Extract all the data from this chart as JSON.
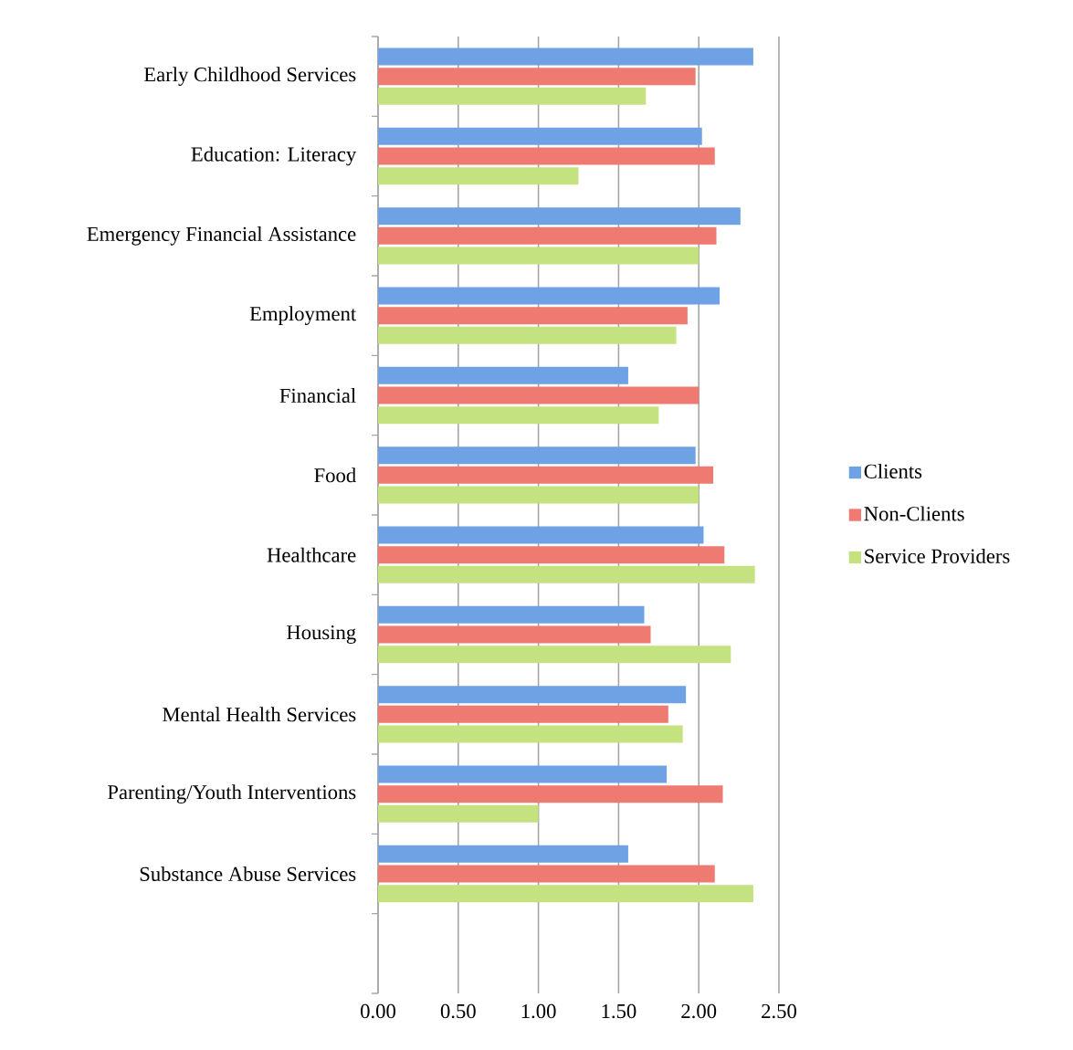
{
  "chart_data": {
    "type": "bar",
    "orientation": "horizontal",
    "categories": [
      "Early Childhood Services",
      "Education: Literacy",
      "Emergency Financial Assistance",
      "Employment",
      "Financial",
      "Food",
      "Healthcare",
      "Housing",
      "Mental Health Services",
      "Parenting/Youth Interventions",
      "Substance Abuse Services",
      null
    ],
    "series": [
      {
        "name": "Clients",
        "color": "#6ea2e4",
        "values": [
          2.34,
          2.02,
          2.26,
          2.13,
          1.56,
          1.98,
          2.03,
          1.66,
          1.92,
          1.8,
          1.56,
          null
        ]
      },
      {
        "name": "Non-Clients",
        "color": "#ee7a72",
        "values": [
          1.98,
          2.1,
          2.11,
          1.93,
          2.0,
          2.09,
          2.16,
          1.7,
          1.81,
          2.15,
          2.1,
          null
        ]
      },
      {
        "name": "Service Providers",
        "color": "#c5e280",
        "values": [
          1.67,
          1.25,
          2.0,
          1.86,
          1.75,
          2.0,
          2.35,
          2.2,
          1.9,
          1.0,
          2.34,
          null
        ]
      }
    ],
    "xlim": [
      0,
      2.5
    ],
    "xticks": [
      {
        "value": 0,
        "label": "0.00"
      },
      {
        "value": 0.5,
        "label": "0.50"
      },
      {
        "value": 1,
        "label": "1.00"
      },
      {
        "value": 1.5,
        "label": "1.50"
      },
      {
        "value": 2,
        "label": "2.00"
      },
      {
        "value": 2.5,
        "label": "2.50"
      }
    ],
    "grid": "x",
    "legend": "right"
  }
}
